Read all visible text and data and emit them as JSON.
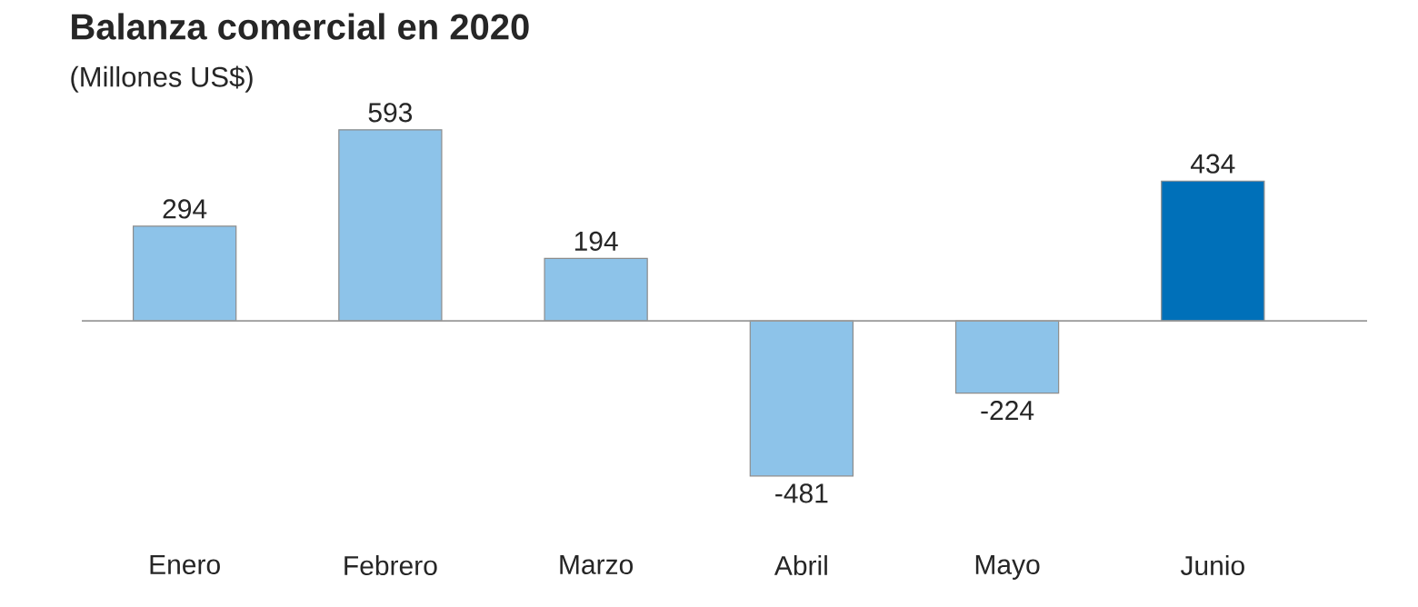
{
  "chart_data": {
    "type": "bar",
    "title": "Balanza comercial en 2020",
    "subtitle": "(Millones US$)",
    "categories": [
      "Enero",
      "Febrero",
      "Marzo",
      "Abril",
      "Mayo",
      "Junio"
    ],
    "values": [
      294,
      593,
      194,
      -481,
      -224,
      434
    ],
    "colors": [
      "#8dc3e9",
      "#8dc3e9",
      "#8dc3e9",
      "#8dc3e9",
      "#8dc3e9",
      "#0070b9"
    ],
    "data_labels": true
  }
}
